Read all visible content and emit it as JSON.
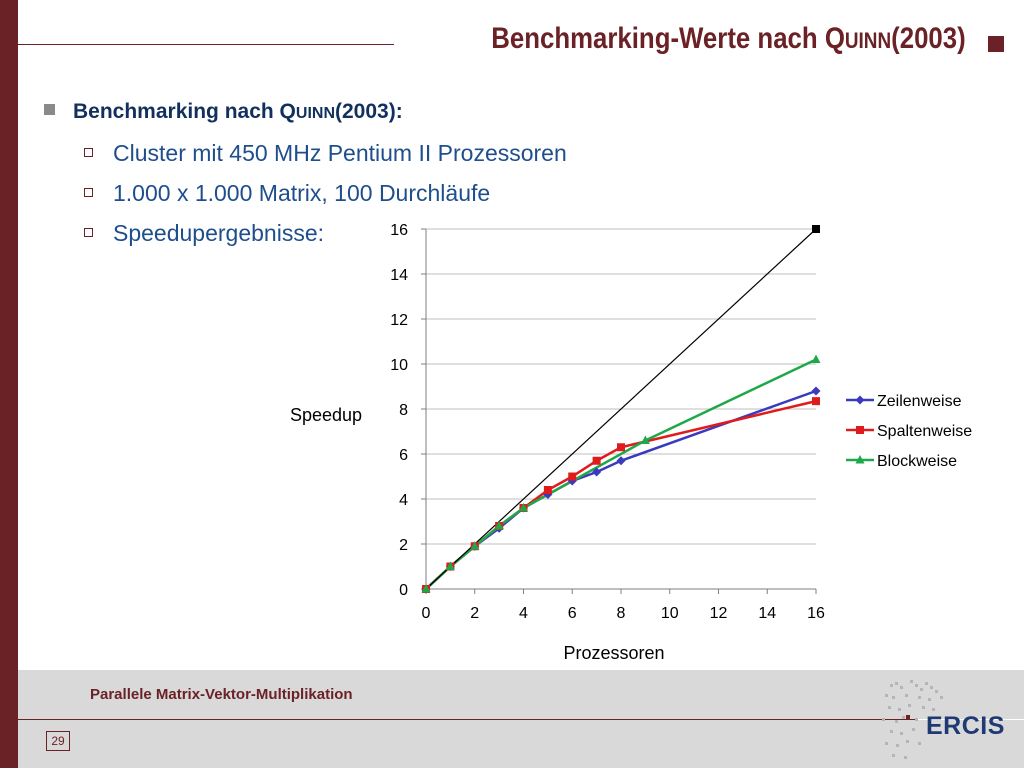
{
  "slide": {
    "title_main": "Benchmarking-Werte nach Q",
    "title_sc": "UINN",
    "title_tail": "(2003)",
    "page_number": "29",
    "footer": "Parallele Matrix-Vektor-Multiplikation",
    "logo_text": "ERCIS"
  },
  "bullets": {
    "level1_prefix": "Benchmarking nach Q",
    "level1_sc": "UINN",
    "level1_suffix": "(2003):",
    "items": [
      "Cluster mit 450 MHz Pentium II Prozessoren",
      "1.000 x 1.000 Matrix, 100 Durchläufe",
      "Speedupergebnisse:"
    ]
  },
  "colors": {
    "accent": "#6b2227",
    "heading": "#12305e",
    "text": "#1f4e8c",
    "zeilenweise": "#3a3abf",
    "spaltenweise": "#e01b1b",
    "blockweise": "#1fa84a",
    "ideal": "#000000"
  },
  "chart_data": {
    "type": "line",
    "xlabel": "Prozessoren",
    "ylabel": "Speedup",
    "xlim": [
      0,
      16
    ],
    "ylim": [
      0,
      16
    ],
    "x_ticks": [
      0,
      2,
      4,
      6,
      8,
      10,
      12,
      14,
      16
    ],
    "y_ticks": [
      0,
      2,
      4,
      6,
      8,
      10,
      12,
      14,
      16
    ],
    "grid": "horizontal",
    "legend_position": "right",
    "series": [
      {
        "name": "Zeilenweise",
        "marker": "diamond",
        "color": "#3a3abf",
        "x": [
          0,
          1,
          2,
          3,
          4,
          5,
          6,
          7,
          8,
          16
        ],
        "y": [
          0,
          1.0,
          1.9,
          2.7,
          3.6,
          4.2,
          4.8,
          5.2,
          5.7,
          8.8
        ]
      },
      {
        "name": "Spaltenweise",
        "marker": "square",
        "color": "#e01b1b",
        "x": [
          0,
          1,
          2,
          3,
          4,
          5,
          6,
          7,
          8,
          16
        ],
        "y": [
          0,
          1.0,
          1.9,
          2.8,
          3.6,
          4.4,
          5.0,
          5.7,
          6.3,
          8.35
        ]
      },
      {
        "name": "Blockweise",
        "marker": "triangle",
        "color": "#1fa84a",
        "x": [
          0,
          1,
          2,
          3,
          4,
          9,
          16
        ],
        "y": [
          0,
          1.0,
          1.9,
          2.8,
          3.6,
          6.6,
          10.2
        ]
      },
      {
        "marker": "square",
        "color": "#000000",
        "x": [
          0,
          16
        ],
        "y": [
          0,
          16
        ]
      }
    ]
  }
}
